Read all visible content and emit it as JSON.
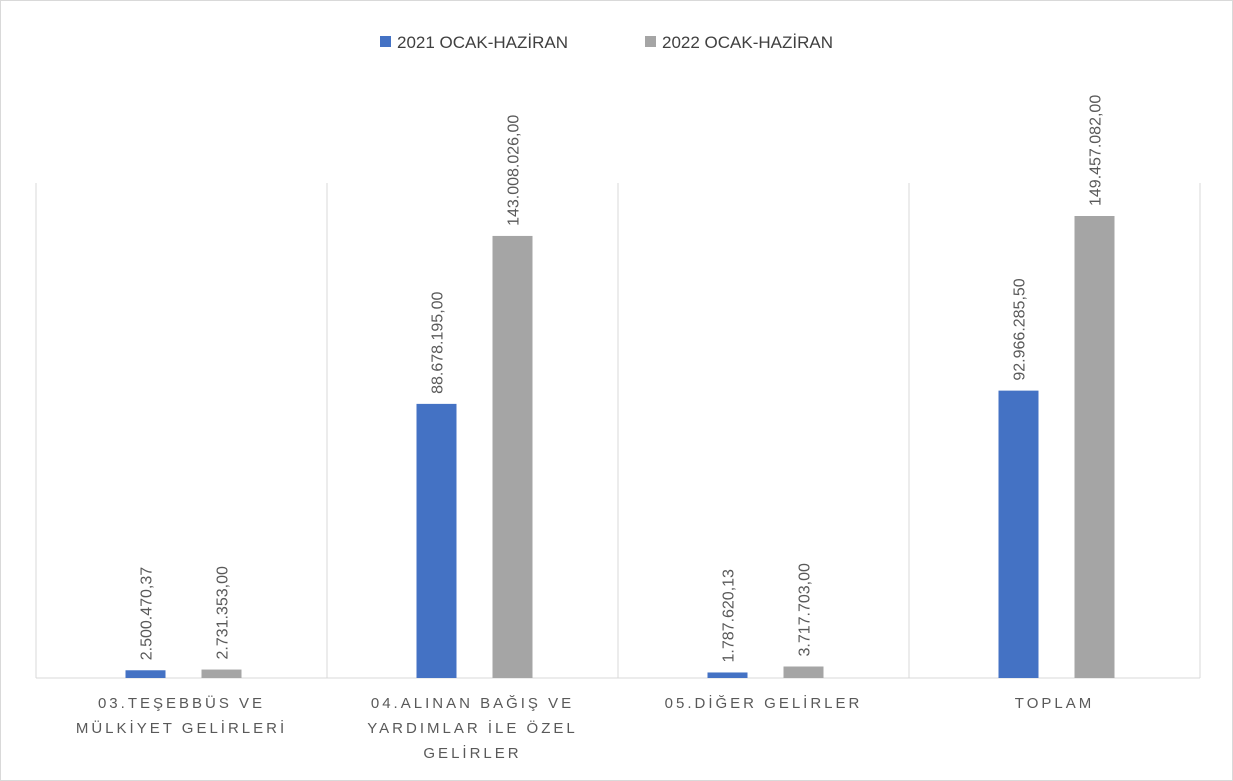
{
  "chart_data": {
    "type": "bar",
    "title": "",
    "categories": [
      [
        "03.TEŞEBBÜS VE",
        "MÜLKİYET GELİRLERİ"
      ],
      [
        "04.ALINAN BAĞIŞ VE",
        "YARDIMLAR İLE ÖZEL",
        "GELİRLER"
      ],
      [
        "05.DİĞER GELİRLER"
      ],
      [
        "TOPLAM"
      ]
    ],
    "series": [
      {
        "name": "2021 OCAK-HAZİRAN",
        "color": "#4472C4",
        "values": [
          2500470.37,
          88678195.0,
          1787620.13,
          92966285.5
        ],
        "labels": [
          "2.500.470,37",
          "88.678.195,00",
          "1.787.620,13",
          "92.966.285,50"
        ]
      },
      {
        "name": "2022 OCAK-HAZİRAN",
        "color": "#A5A5A5",
        "values": [
          2731353.0,
          143008026.0,
          3717703.0,
          149457082.0
        ],
        "labels": [
          "2.731.353,00",
          "143.008.026,00",
          "3.717.703,00",
          "149.457.082,00"
        ]
      }
    ],
    "ylim": [
      0,
      249000000
    ],
    "grid": "vertical category separators",
    "legend": "top-center"
  }
}
